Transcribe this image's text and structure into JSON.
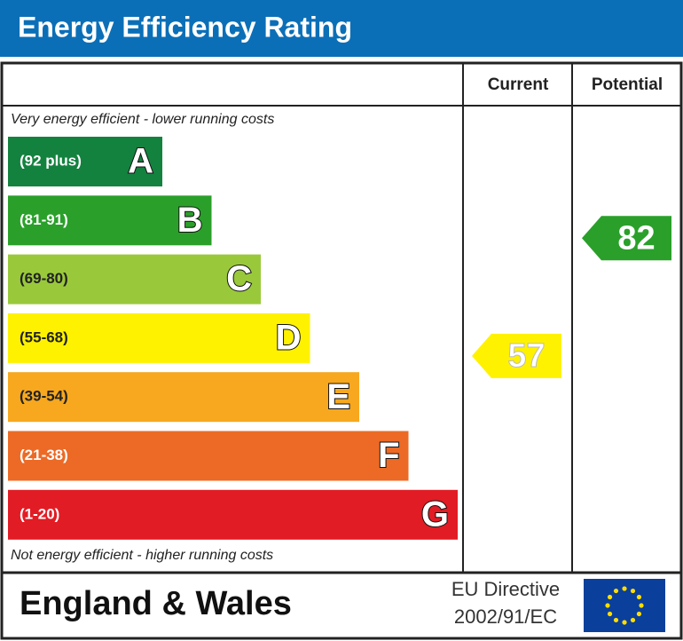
{
  "title": "Energy Efficiency Rating",
  "columns": {
    "current": "Current",
    "potential": "Potential"
  },
  "top_note": "Very energy efficient - lower running costs",
  "bottom_note": "Not energy efficient - higher running costs",
  "bands": [
    {
      "range": "(92 plus)",
      "letter": "A",
      "color": "#13823f"
    },
    {
      "range": "(81-91)",
      "letter": "B",
      "color": "#2aa02a"
    },
    {
      "range": "(69-80)",
      "letter": "C",
      "color": "#99c93b"
    },
    {
      "range": "(55-68)",
      "letter": "D",
      "color": "#fff200"
    },
    {
      "range": "(39-54)",
      "letter": "E",
      "color": "#f7a81e"
    },
    {
      "range": "(21-38)",
      "letter": "F",
      "color": "#ec6a25"
    },
    {
      "range": "(1-20)",
      "letter": "G",
      "color": "#e21c24"
    }
  ],
  "current": {
    "value": 57,
    "color": "#fff200"
  },
  "potential": {
    "value": 82,
    "color": "#2aa02a"
  },
  "footer": {
    "region": "England & Wales",
    "directive": [
      "EU Directive",
      "2002/91/EC"
    ]
  }
}
